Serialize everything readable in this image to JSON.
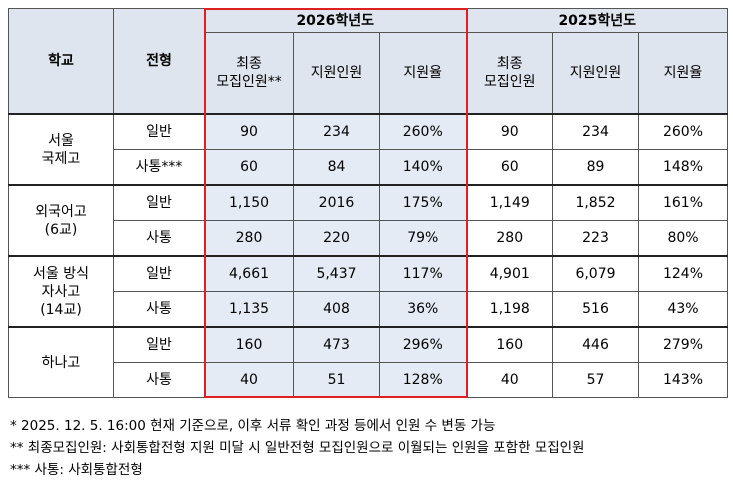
{
  "header": {
    "school": "학교",
    "track": "전형",
    "years": [
      {
        "label": "2026학년도",
        "columns": [
          "최종\n모집인원**",
          "지원인원",
          "지원율"
        ]
      },
      {
        "label": "2025학년도",
        "columns": [
          "최종\n모집인원",
          "지원인원",
          "지원율"
        ]
      }
    ]
  },
  "groups": [
    {
      "school": "서울\n국제고",
      "rows": [
        {
          "track": "일반",
          "values": [
            "90",
            "234",
            "260%",
            "90",
            "234",
            "260%"
          ]
        },
        {
          "track": "사통***",
          "values": [
            "60",
            "84",
            "140%",
            "60",
            "89",
            "148%"
          ]
        }
      ]
    },
    {
      "school": "외국어고\n(6교)",
      "rows": [
        {
          "track": "일반",
          "values": [
            "1,150",
            "2016",
            "175%",
            "1,149",
            "1,852",
            "161%"
          ]
        },
        {
          "track": "사통",
          "values": [
            "280",
            "220",
            "79%",
            "280",
            "223",
            "80%"
          ]
        }
      ]
    },
    {
      "school": "서울 방식\n자사고\n(14교)",
      "rows": [
        {
          "track": "일반",
          "values": [
            "4,661",
            "5,437",
            "117%",
            "4,901",
            "6,079",
            "124%"
          ]
        },
        {
          "track": "사통",
          "values": [
            "1,135",
            "408",
            "36%",
            "1,198",
            "516",
            "43%"
          ]
        }
      ]
    },
    {
      "school": "하나고",
      "rows": [
        {
          "track": "일반",
          "values": [
            "160",
            "473",
            "296%",
            "160",
            "446",
            "279%"
          ]
        },
        {
          "track": "사통",
          "values": [
            "40",
            "51",
            "128%",
            "40",
            "57",
            "143%"
          ]
        }
      ]
    }
  ],
  "notes": [
    "* 2025. 12. 5. 16:00 현재 기준으로, 이후 서류 확인 과정 등에서 인원 수 변동 가능",
    "** 최종모집인원: 사회통합전형 지원 미달 시 일반전형 모집인원으로 이월되는 인원을 포함한 모집인원",
    "*** 사통: 사회통합전형"
  ]
}
